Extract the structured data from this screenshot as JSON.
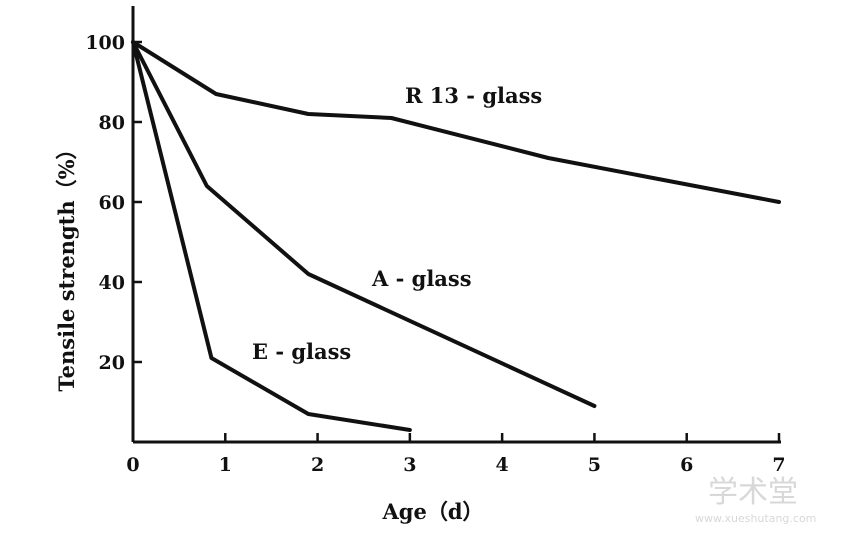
{
  "chart_data": {
    "type": "line",
    "xlabel": "Age（d）",
    "ylabel": "Tensile strength（%）",
    "xlim": [
      0,
      7
    ],
    "ylim": [
      0,
      100
    ],
    "x_ticks": [
      "0",
      "1",
      "2",
      "3",
      "4",
      "5",
      "6",
      "7"
    ],
    "y_ticks": [
      "100",
      "80",
      "60",
      "40",
      "20"
    ],
    "grid": false,
    "legend": "none",
    "series": [
      {
        "name": "R 13 - glass",
        "x": [
          0,
          0.9,
          1.9,
          2.8,
          4.5,
          7
        ],
        "y": [
          100,
          87,
          82,
          81,
          71,
          60
        ]
      },
      {
        "name": "A - glass",
        "x": [
          0,
          0.8,
          1.9,
          5.0
        ],
        "y": [
          100,
          64,
          42,
          9
        ]
      },
      {
        "name": "E - glass",
        "x": [
          0,
          0.85,
          1.9,
          3.0
        ],
        "y": [
          100,
          21,
          7,
          3
        ]
      }
    ]
  },
  "watermark": {
    "cn": "学术堂",
    "url": "www.xueshutang.com"
  }
}
